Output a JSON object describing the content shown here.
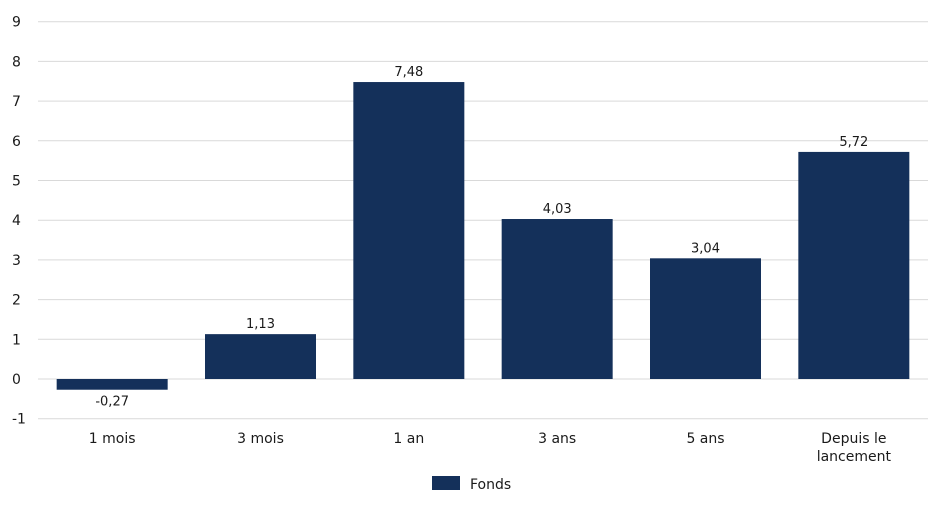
{
  "chart_data": {
    "type": "bar",
    "categories": [
      "1 mois",
      "3 mois",
      "1 an",
      "3 ans",
      "5 ans",
      "Depuis le lancement"
    ],
    "series": [
      {
        "name": "Fonds",
        "values": [
          -0.27,
          1.13,
          7.48,
          4.03,
          3.04,
          5.72
        ],
        "labels": [
          "-0,27",
          "1,13",
          "7,48",
          "4,03",
          "3,04",
          "5,72"
        ],
        "color": "#14305a"
      }
    ],
    "yticks": [
      "-1",
      "0",
      "1",
      "2",
      "3",
      "4",
      "5",
      "6",
      "7",
      "8",
      "9"
    ],
    "ylim": [
      -1,
      9
    ],
    "grid": true,
    "legend_position": "bottom-center"
  }
}
